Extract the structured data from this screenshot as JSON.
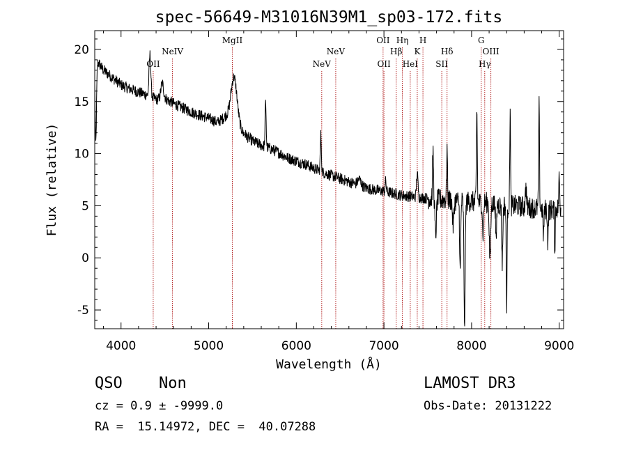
{
  "chart_data": {
    "type": "line",
    "title": "spec-56649-M31016N39M1_sp03-172.fits",
    "xlabel": "Wavelength (Å)",
    "ylabel": "Flux (relative)",
    "xlim": [
      3700,
      9050
    ],
    "ylim": [
      -6.8,
      21.8
    ],
    "x_ticks": [
      4000,
      5000,
      6000,
      7000,
      8000,
      9000
    ],
    "y_ticks": [
      -5,
      0,
      5,
      10,
      15,
      20
    ],
    "x_minor_step": 200,
    "y_minor_step": 1,
    "line_color": "#000000",
    "marker_color": "#b22222",
    "continuum": [
      [
        3700,
        19.2
      ],
      [
        3800,
        18.0
      ],
      [
        3900,
        17.3
      ],
      [
        4000,
        16.6
      ],
      [
        4100,
        16.2
      ],
      [
        4200,
        15.9
      ],
      [
        4300,
        15.6
      ],
      [
        4400,
        15.2
      ],
      [
        4500,
        15.3
      ],
      [
        4600,
        14.8
      ],
      [
        4700,
        14.4
      ],
      [
        4800,
        14.0
      ],
      [
        4900,
        13.7
      ],
      [
        5000,
        13.4
      ],
      [
        5100,
        13.0
      ],
      [
        5200,
        13.6
      ],
      [
        5350,
        12.3
      ],
      [
        5500,
        11.2
      ],
      [
        5600,
        10.8
      ],
      [
        5700,
        10.5
      ],
      [
        5800,
        10.1
      ],
      [
        5900,
        9.6
      ],
      [
        6000,
        9.3
      ],
      [
        6100,
        9.0
      ],
      [
        6200,
        8.6
      ],
      [
        6300,
        8.2
      ],
      [
        6400,
        7.9
      ],
      [
        6500,
        7.6
      ],
      [
        6600,
        7.3
      ],
      [
        6700,
        7.0
      ],
      [
        6800,
        6.7
      ],
      [
        6900,
        6.5
      ],
      [
        7000,
        6.4
      ],
      [
        7100,
        6.2
      ],
      [
        7200,
        6.0
      ],
      [
        7300,
        5.9
      ],
      [
        7400,
        5.8
      ],
      [
        7500,
        5.7
      ],
      [
        7600,
        5.6
      ],
      [
        7700,
        5.6
      ],
      [
        7800,
        5.5
      ],
      [
        7900,
        5.4
      ],
      [
        8000,
        5.4
      ],
      [
        8100,
        5.3
      ],
      [
        8200,
        5.3
      ],
      [
        8300,
        5.1
      ],
      [
        8400,
        5.0
      ],
      [
        8500,
        5.0
      ],
      [
        8600,
        4.9
      ],
      [
        8700,
        4.8
      ],
      [
        8800,
        4.7
      ],
      [
        8900,
        4.6
      ],
      [
        9000,
        4.8
      ]
    ],
    "features": [
      {
        "center": 3712,
        "width": 8,
        "amp": -8
      },
      {
        "center": 4330,
        "width": 10,
        "amp": 4
      },
      {
        "center": 4470,
        "width": 15,
        "amp": 1.5
      },
      {
        "center": 5290,
        "width": 35,
        "amp": 4.5
      },
      {
        "center": 5650,
        "width": 6,
        "amp": 4.2
      },
      {
        "center": 6280,
        "width": 6,
        "amp": 3.5
      },
      {
        "center": 6720,
        "width": 20,
        "amp": 0.6
      },
      {
        "center": 7020,
        "width": 6,
        "amp": 1.0
      },
      {
        "center": 7380,
        "width": 8,
        "amp": 2.3
      },
      {
        "center": 7560,
        "width": 6,
        "amp": 4.5
      },
      {
        "center": 7590,
        "width": 8,
        "amp": -3.5
      },
      {
        "center": 7720,
        "width": 5,
        "amp": 5.0
      },
      {
        "center": 7790,
        "width": 8,
        "amp": -2.5
      },
      {
        "center": 7870,
        "width": 6,
        "amp": -7.0
      },
      {
        "center": 7920,
        "width": 7,
        "amp": -11.5
      },
      {
        "center": 8060,
        "width": 5,
        "amp": 9.0
      },
      {
        "center": 8130,
        "width": 6,
        "amp": -3.0
      },
      {
        "center": 8210,
        "width": 8,
        "amp": -5.5
      },
      {
        "center": 8280,
        "width": 5,
        "amp": -4.0
      },
      {
        "center": 8350,
        "width": 6,
        "amp": -5.5
      },
      {
        "center": 8400,
        "width": 5,
        "amp": -9.5
      },
      {
        "center": 8440,
        "width": 4,
        "amp": 10.0
      },
      {
        "center": 8620,
        "width": 6,
        "amp": 2.0
      },
      {
        "center": 8770,
        "width": 5,
        "amp": 9.8
      },
      {
        "center": 8820,
        "width": 6,
        "amp": -2.5
      },
      {
        "center": 8870,
        "width": 5,
        "amp": -3.0
      },
      {
        "center": 8950,
        "width": 4,
        "amp": -4.0
      },
      {
        "center": 9000,
        "width": 5,
        "amp": 3.0
      }
    ],
    "noise_amplitude": 0.55,
    "red_noise_boost": 0.9,
    "lines": [
      {
        "label": "OII",
        "x": 4367,
        "row": 2
      },
      {
        "label": "NeIV",
        "x": 4587,
        "row": 1
      },
      {
        "label": "MgII",
        "x": 5270,
        "row": 0
      },
      {
        "label": "NeV",
        "x": 6290,
        "row": 2
      },
      {
        "label": "NeV",
        "x": 6450,
        "row": 1
      },
      {
        "label": "OII",
        "x": 6990,
        "row": 0
      },
      {
        "label": "OII",
        "x": 7000,
        "row": 2
      },
      {
        "label": "Hβ",
        "x": 7140,
        "row": 1
      },
      {
        "label": "Hη",
        "x": 7210,
        "row": 0
      },
      {
        "label": "HeI",
        "x": 7300,
        "row": 2
      },
      {
        "label": "K",
        "x": 7380,
        "row": 1
      },
      {
        "label": "H",
        "x": 7445,
        "row": 0
      },
      {
        "label": "Hδ",
        "x": 7720,
        "row": 1
      },
      {
        "label": "SII",
        "x": 7660,
        "row": 2
      },
      {
        "label": "G",
        "x": 8110,
        "row": 0
      },
      {
        "label": "Hγ",
        "x": 8150,
        "row": 2
      },
      {
        "label": "OIII",
        "x": 8220,
        "row": 1
      }
    ]
  },
  "info": {
    "class_label": "QSO",
    "subclass": "Non",
    "redshift": "cz = 0.9 ± -9999.0",
    "coords": "RA =  15.14972, DEC =  40.07288",
    "survey": "LAMOST DR3",
    "obs_date": "Obs-Date: 20131222"
  }
}
